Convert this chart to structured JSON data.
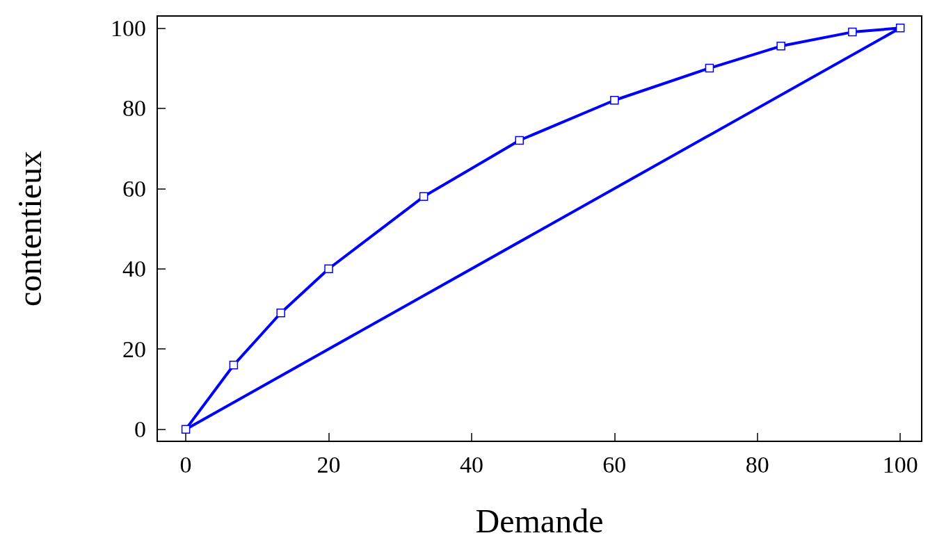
{
  "chart_data": {
    "type": "line",
    "xlabel": "Demande",
    "ylabel": "contentieux",
    "x": [
      0,
      6.7,
      13.3,
      20,
      33.3,
      46.7,
      60,
      73.3,
      83.3,
      93.3,
      100
    ],
    "series": [
      {
        "color": "#0000ff",
        "marker": "square",
        "values": [
          0,
          16,
          29,
          40,
          58,
          72,
          82,
          90,
          95.5,
          99,
          100
        ]
      },
      {
        "color": "#0000ff",
        "marker": "none",
        "x": [
          0,
          100
        ],
        "values": [
          0,
          100
        ]
      }
    ],
    "xlim": [
      -4,
      103
    ],
    "ylim": [
      -3,
      103
    ],
    "xticks": [
      0,
      20,
      40,
      60,
      80,
      100
    ],
    "yticks": [
      0,
      20,
      40,
      60,
      80,
      100
    ],
    "grid": false,
    "line_style": "solid"
  }
}
